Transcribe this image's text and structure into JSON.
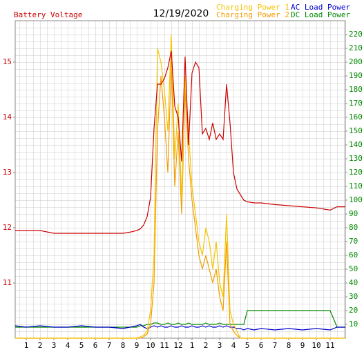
{
  "chart_data": {
    "type": "line",
    "title": "12/19/2020",
    "x": [
      0.2,
      1,
      2,
      3,
      4,
      5,
      6,
      7,
      8,
      8.5,
      9,
      9.25,
      9.5,
      9.75,
      10,
      10.25,
      10.5,
      10.75,
      11,
      11.25,
      11.5,
      11.75,
      12,
      12.25,
      12.5,
      12.75,
      13,
      13.25,
      13.5,
      13.75,
      14,
      14.25,
      14.5,
      14.75,
      15,
      15.25,
      15.5,
      15.75,
      16,
      16.25,
      16.5,
      16.75,
      17,
      17.5,
      18,
      19,
      20,
      21,
      22,
      23,
      23.5,
      24.1
    ],
    "series": [
      {
        "name": "Battery Voltage",
        "color": "#cc0000",
        "axis": "y",
        "values": [
          11.95,
          11.95,
          11.95,
          11.9,
          11.9,
          11.9,
          11.9,
          11.9,
          11.9,
          11.92,
          11.95,
          11.98,
          12.05,
          12.2,
          12.55,
          13.8,
          14.6,
          14.6,
          14.7,
          14.9,
          15.2,
          14.2,
          14.0,
          13.2,
          15.1,
          13.5,
          14.8,
          15.0,
          14.9,
          13.7,
          13.8,
          13.6,
          13.9,
          13.6,
          13.7,
          13.6,
          14.6,
          13.9,
          13.0,
          12.7,
          12.6,
          12.5,
          12.47,
          12.45,
          12.45,
          12.42,
          12.4,
          12.38,
          12.36,
          12.32,
          12.38,
          12.38
        ]
      },
      {
        "name": "Charging Power 1",
        "color": "#f5c400",
        "axis": "y2",
        "values": [
          0,
          0,
          0,
          0,
          0,
          0,
          0,
          0,
          0,
          0,
          0,
          1,
          2,
          5,
          20,
          60,
          210,
          200,
          180,
          150,
          220,
          130,
          170,
          100,
          190,
          150,
          110,
          90,
          70,
          60,
          80,
          70,
          50,
          70,
          40,
          30,
          90,
          20,
          10,
          5,
          0,
          0,
          0,
          0,
          0,
          0,
          0,
          0,
          0,
          0,
          0,
          0
        ]
      },
      {
        "name": "Charging Power 2",
        "color": "#f39c00",
        "axis": "y2",
        "values": [
          0,
          0,
          0,
          0,
          0,
          0,
          0,
          0,
          0,
          0,
          0,
          0,
          1,
          3,
          10,
          40,
          150,
          190,
          160,
          120,
          200,
          110,
          150,
          90,
          180,
          130,
          100,
          80,
          60,
          50,
          60,
          50,
          40,
          50,
          30,
          20,
          70,
          10,
          5,
          2,
          0,
          0,
          0,
          0,
          0,
          0,
          0,
          0,
          0,
          0,
          0,
          0
        ]
      },
      {
        "name": "AC Load Power",
        "color": "#0000cc",
        "axis": "y2",
        "values": [
          9,
          8,
          9,
          8,
          8,
          9,
          8,
          8,
          7,
          8,
          9,
          10,
          8,
          7,
          8,
          9,
          8,
          9,
          8,
          8,
          9,
          8,
          8,
          9,
          8,
          8,
          9,
          8,
          8,
          9,
          8,
          9,
          8,
          8,
          9,
          8,
          9,
          8,
          8,
          7,
          7,
          6,
          7,
          6,
          7,
          6,
          7,
          6,
          7,
          6,
          8,
          8
        ]
      },
      {
        "name": "DC Load Power",
        "color": "#008800",
        "axis": "y2",
        "values": [
          8,
          8,
          8,
          8,
          8,
          8,
          8,
          8,
          8,
          8,
          8,
          9,
          9,
          10,
          10,
          11,
          11,
          10,
          10,
          11,
          10,
          10,
          11,
          10,
          10,
          11,
          10,
          10,
          10,
          10,
          11,
          10,
          10,
          10,
          11,
          10,
          10,
          10,
          10,
          10,
          10,
          10,
          20,
          20,
          20,
          20,
          20,
          20,
          20,
          20,
          8,
          8
        ]
      }
    ],
    "xlim": [
      0.2,
      24.1
    ],
    "xticks": [
      1,
      2,
      3,
      4,
      5,
      6,
      7,
      8,
      9,
      10,
      11,
      12,
      {
        "value": 13,
        "label": "1"
      },
      {
        "value": 14,
        "label": "2"
      },
      {
        "value": 15,
        "label": "3"
      },
      {
        "value": 16,
        "label": "4"
      },
      {
        "value": 17,
        "label": "5"
      },
      {
        "value": 18,
        "label": "6"
      },
      {
        "value": 19,
        "label": "7"
      },
      {
        "value": 20,
        "label": "8"
      },
      {
        "value": 21,
        "label": "9"
      },
      {
        "value": 22,
        "label": "10"
      },
      {
        "value": 23,
        "label": "11"
      }
    ],
    "ylim": [
      10,
      15.75
    ],
    "yticks": [
      11,
      12,
      13,
      14,
      15
    ],
    "y2lim": [
      0,
      230
    ],
    "y2ticks": [
      10,
      20,
      30,
      40,
      50,
      60,
      70,
      80,
      90,
      100,
      110,
      120,
      130,
      140,
      150,
      160,
      170,
      180,
      190,
      200,
      210,
      220
    ],
    "grid": true
  }
}
